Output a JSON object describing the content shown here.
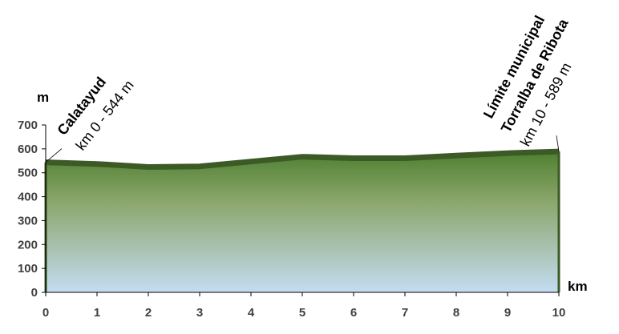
{
  "chart_data": {
    "type": "area",
    "title": "",
    "xlabel": "km",
    "ylabel": "m",
    "xlim": [
      0,
      10
    ],
    "ylim": [
      0,
      700
    ],
    "x_ticks": [
      "0",
      "1",
      "2",
      "3",
      "4",
      "5",
      "6",
      "7",
      "8",
      "9",
      "10"
    ],
    "y_ticks": [
      "0",
      "100",
      "200",
      "300",
      "400",
      "500",
      "600",
      "700"
    ],
    "grid": false,
    "legend": "none",
    "series": [
      {
        "x": [
          0,
          1,
          2,
          3,
          4,
          5,
          6,
          7,
          8,
          9,
          10
        ],
        "y": [
          544,
          537,
          524,
          527,
          547,
          567,
          561,
          561,
          572,
          582,
          589
        ]
      }
    ],
    "annotations": [
      {
        "name": "Calatayud",
        "detail": "km 0 - 544 m",
        "x": 0,
        "y": 544
      },
      {
        "name": "Límite municipal",
        "name2": "Torralba de Ribota",
        "detail": "km 10 - 589 m",
        "x": 10,
        "y": 589
      }
    ],
    "colors": {
      "profile_line": "#3b5a26",
      "fill_top": "#4e7f30",
      "fill_mid": "#8aa66a",
      "fill_bottom": "#c4dcf2",
      "axis": "#000000"
    }
  }
}
